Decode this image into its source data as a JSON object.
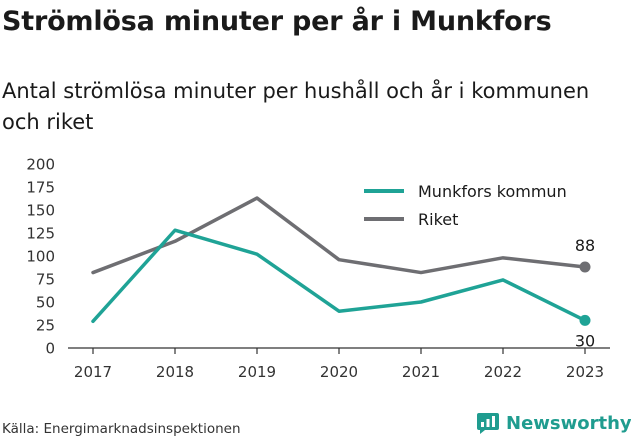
{
  "title": "Strömlösa minuter per år i Munkfors",
  "subtitle": "Antal strömlösa minuter per hushåll och år i kommunen och riket",
  "source": "Källa: Energimarknadsinspektionen",
  "brand": {
    "name": "Newsworthy",
    "icon": "newsworthy-logo-icon",
    "color": "#1f9c8f"
  },
  "chart_data": {
    "type": "line",
    "x": [
      "2017",
      "2018",
      "2019",
      "2020",
      "2021",
      "2022",
      "2023"
    ],
    "ylim": [
      0,
      200
    ],
    "yticks": [
      "0",
      "25",
      "50",
      "75",
      "100",
      "125",
      "150",
      "175",
      "200"
    ],
    "grid": false,
    "legend": "top-right",
    "series": [
      {
        "name": "Munkfors kommun",
        "color": "#1fa396",
        "values": [
          29,
          128,
          102,
          40,
          50,
          74,
          30
        ],
        "end_label": "30"
      },
      {
        "name": "Riket",
        "color": "#6e6e72",
        "values": [
          82,
          116,
          163,
          96,
          82,
          98,
          88
        ],
        "end_label": "88"
      }
    ]
  }
}
